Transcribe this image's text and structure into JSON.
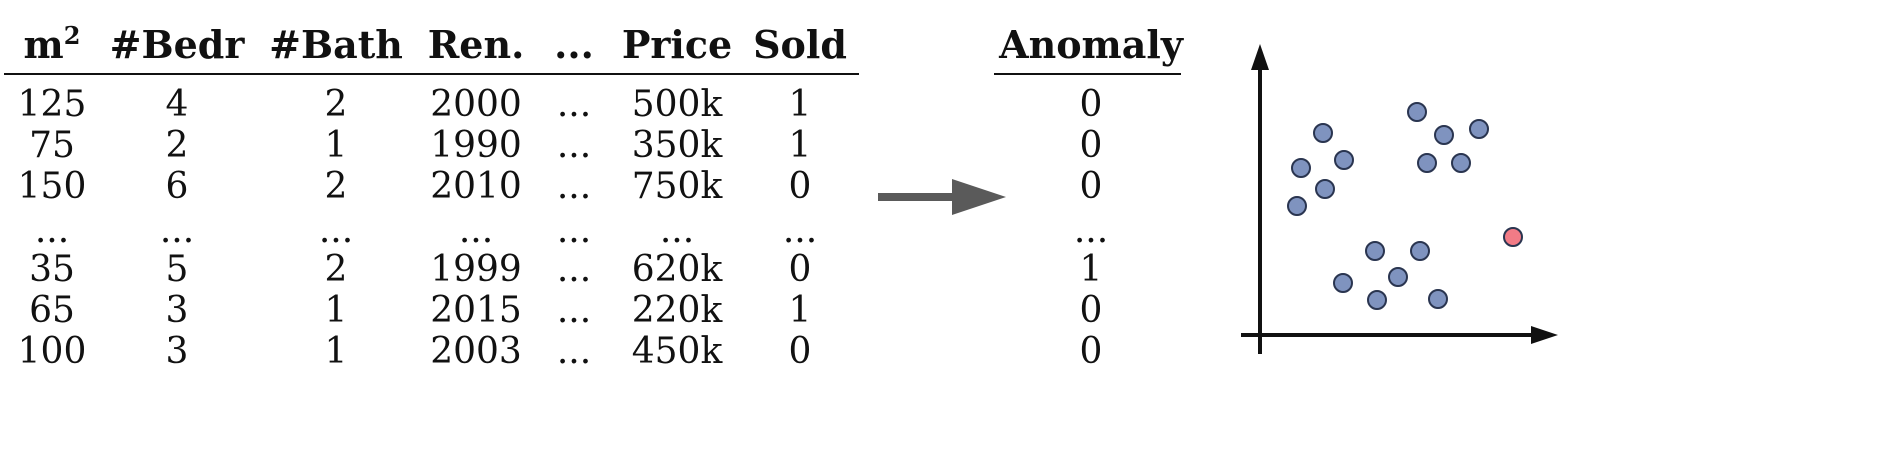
{
  "table": {
    "headers": [
      "m",
      "#Bedr",
      "#Bath",
      "Ren.",
      "...",
      "Price",
      "Sold"
    ],
    "area_exponent": "2",
    "rows": [
      [
        "125",
        "4",
        "2",
        "2000",
        "...",
        "500k",
        "1"
      ],
      [
        "75",
        "2",
        "1",
        "1990",
        "...",
        "350k",
        "1"
      ],
      [
        "150",
        "6",
        "2",
        "2010",
        "...",
        "750k",
        "0"
      ],
      [
        "...",
        "...",
        "...",
        "...",
        "...",
        "...",
        "..."
      ],
      [
        "35",
        "5",
        "2",
        "1999",
        "...",
        "620k",
        "0"
      ],
      [
        "65",
        "3",
        "1",
        "2015",
        "...",
        "220k",
        "1"
      ],
      [
        "100",
        "3",
        "1",
        "2003",
        "...",
        "450k",
        "0"
      ]
    ]
  },
  "anomaly": {
    "header": "Anomaly",
    "values": [
      "0",
      "0",
      "0",
      "...",
      "1",
      "0",
      "0"
    ]
  },
  "scatter": {
    "normal_color": "#7f93bf",
    "anomaly_color": "#f27b86",
    "stroke_color": "#2a3550",
    "clusters": [
      {
        "kind": "normal",
        "points": [
          [
            1323,
            133
          ],
          [
            1301,
            168
          ],
          [
            1344,
            160
          ],
          [
            1325,
            189
          ],
          [
            1297,
            206
          ]
        ]
      },
      {
        "kind": "normal",
        "points": [
          [
            1417,
            112
          ],
          [
            1444,
            135
          ],
          [
            1479,
            129
          ],
          [
            1427,
            163
          ],
          [
            1461,
            163
          ]
        ]
      },
      {
        "kind": "normal",
        "points": [
          [
            1375,
            251
          ],
          [
            1420,
            251
          ],
          [
            1343,
            283
          ],
          [
            1398,
            277
          ],
          [
            1377,
            300
          ],
          [
            1438,
            299
          ]
        ]
      },
      {
        "kind": "anomaly",
        "points": [
          [
            1513,
            237
          ]
        ]
      }
    ]
  },
  "arrow_color": "#5a5a5a"
}
